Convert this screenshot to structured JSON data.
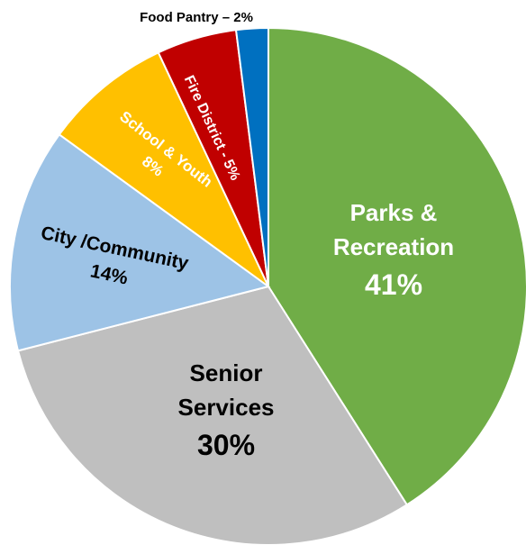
{
  "chart_data": {
    "type": "pie",
    "title": "",
    "slices": [
      {
        "name": "Parks & Recreation",
        "value": 41,
        "label_lines": [
          "Parks &",
          "Recreation",
          "41%"
        ],
        "color": "#70ad47",
        "text_color": "#ffffff"
      },
      {
        "name": "Senior Services",
        "value": 30,
        "label_lines": [
          "Senior",
          "Services",
          "30%"
        ],
        "color": "#bfbfbf",
        "text_color": "#000000"
      },
      {
        "name": "City /Community",
        "value": 14,
        "label_lines": [
          "City /Community",
          "14%"
        ],
        "color": "#9dc3e6",
        "text_color": "#000000"
      },
      {
        "name": "School & Youth",
        "value": 8,
        "label_lines": [
          "School & Youth",
          "8%"
        ],
        "color": "#ffc000",
        "text_color": "#ffffff"
      },
      {
        "name": "Fire District",
        "value": 5,
        "label_lines": [
          "Fire District - 5%"
        ],
        "color": "#c00000",
        "text_color": "#ffffff"
      },
      {
        "name": "Food Pantry",
        "value": 2,
        "label_lines": [
          "Food Pantry – 2%"
        ],
        "color": "#0070c0",
        "text_color": "#000000"
      }
    ]
  }
}
